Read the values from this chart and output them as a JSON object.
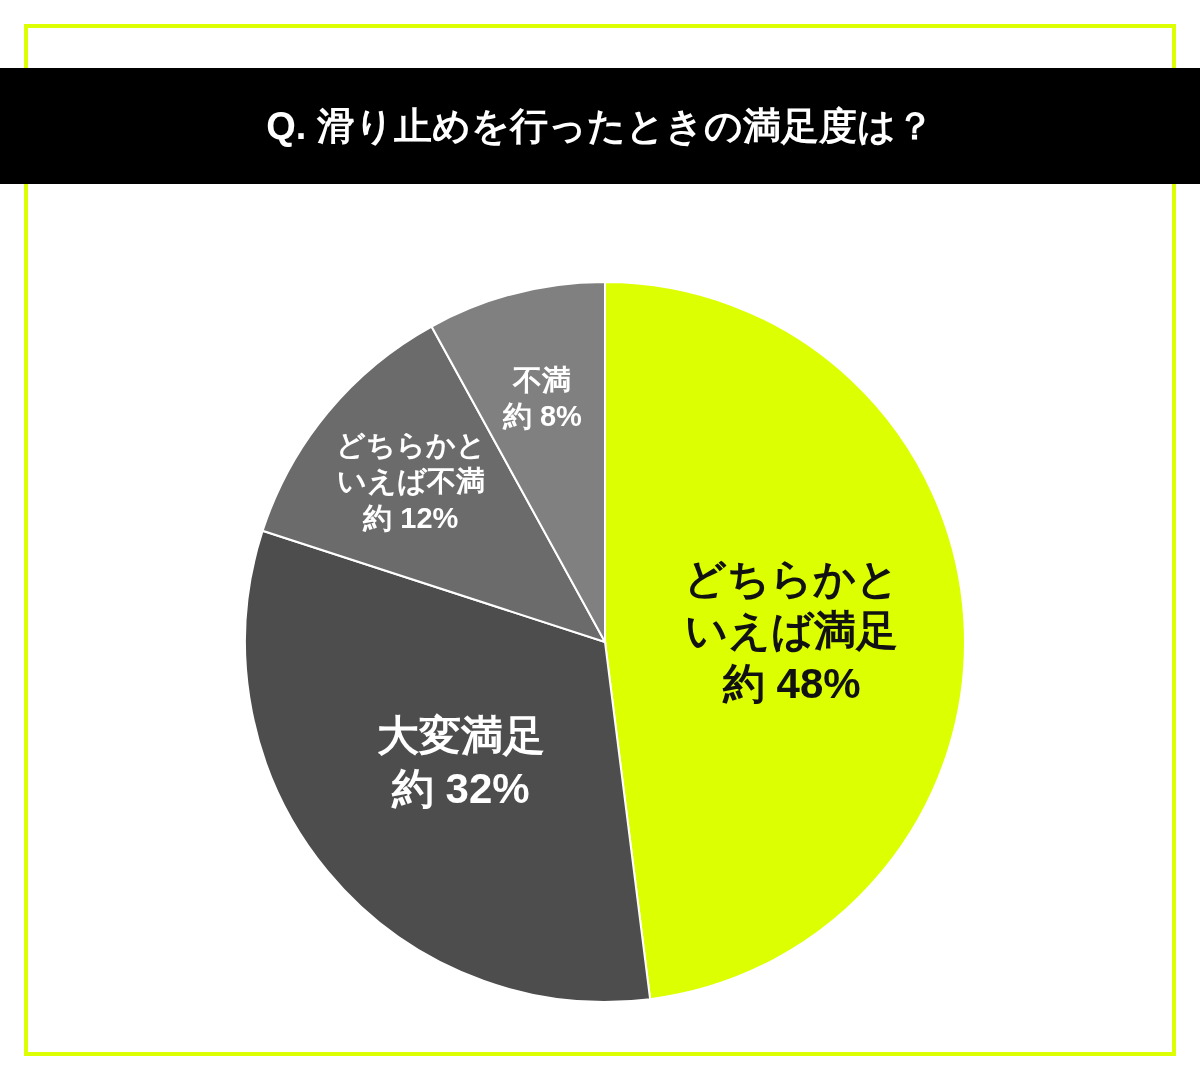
{
  "chart_data": {
    "type": "pie",
    "title": "Q. 滑り止めを行ったときの満足度は？",
    "categories": [
      "どちらかといえば満足",
      "大変満足",
      "どちらかといえば不満",
      "不満"
    ],
    "values": [
      48,
      32,
      12,
      8
    ],
    "colors": [
      "#dcff02",
      "#4d4d4d",
      "#6b6b6b",
      "#808080"
    ],
    "value_labels": [
      "約 48%",
      "約 32%",
      "約 12%",
      "約 8%"
    ]
  }
}
